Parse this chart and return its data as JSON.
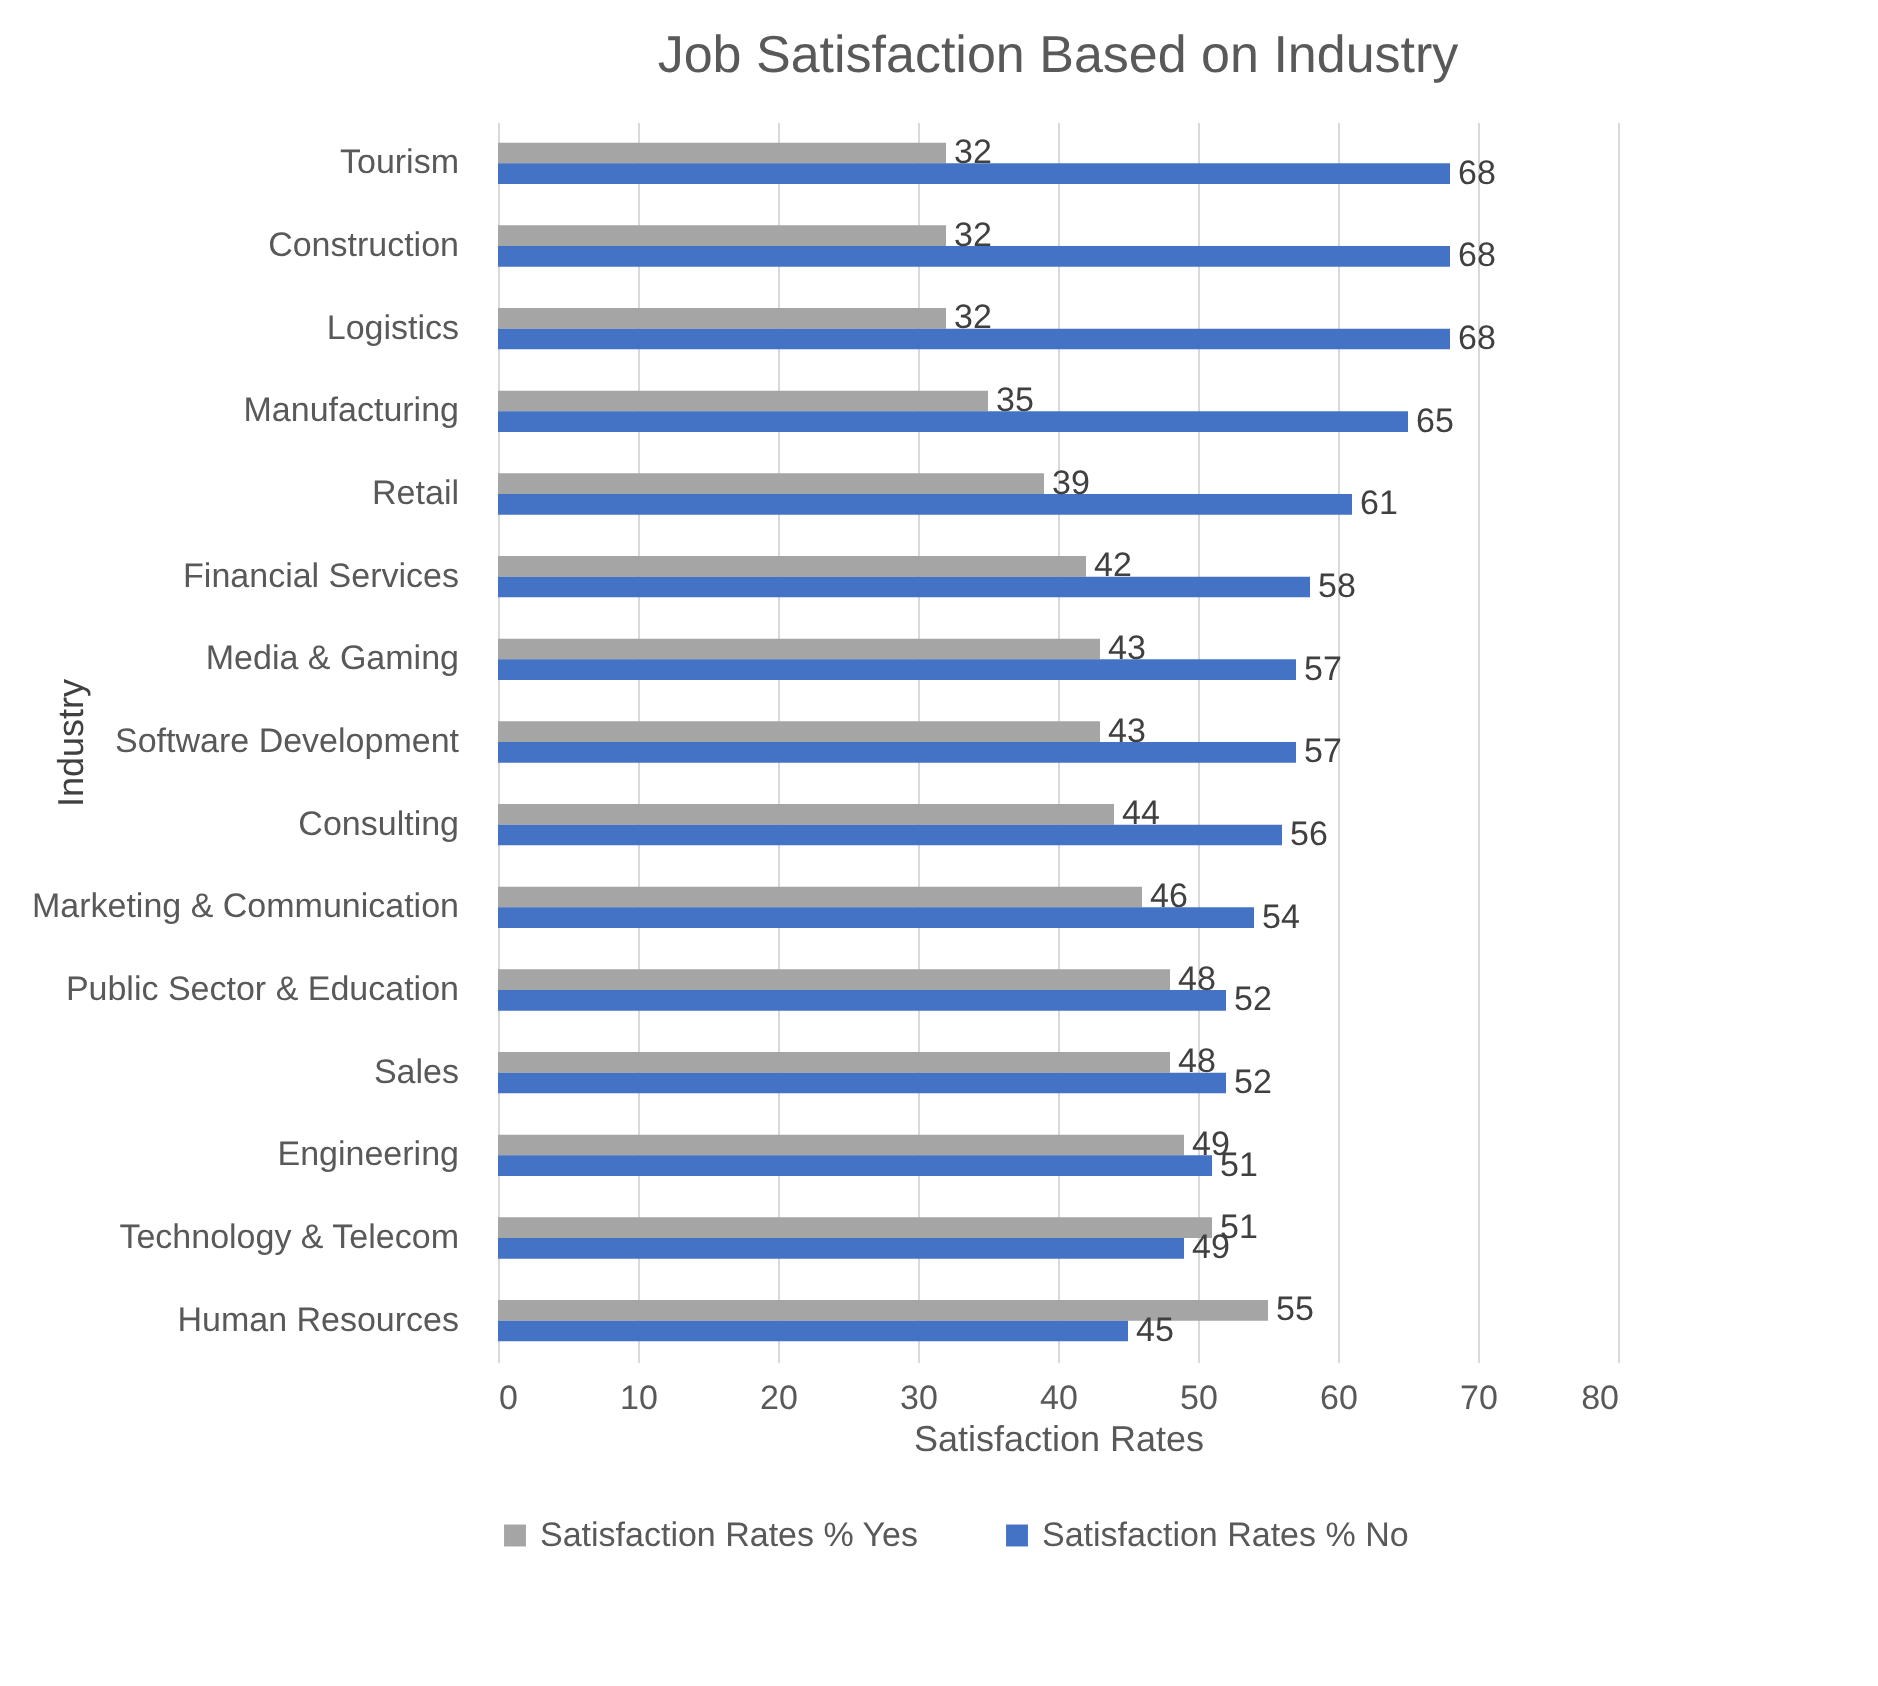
{
  "chart_data": {
    "type": "bar",
    "orientation": "horizontal",
    "title": "Job Satisfaction Based on Industry",
    "xlabel": "Satisfaction Rates",
    "ylabel": "Industry",
    "categories": [
      "Tourism",
      "Construction",
      "Logistics",
      "Manufacturing",
      "Retail",
      "Financial Services",
      "Media & Gaming",
      "Software Development",
      "Consulting",
      "Marketing & Communication",
      "Public Sector & Education",
      "Sales",
      "Engineering",
      "Technology & Telecom",
      "Human Resources"
    ],
    "series": [
      {
        "name": "Satisfaction Rates % Yes",
        "color": "#a5a5a5",
        "values": [
          32,
          32,
          32,
          35,
          39,
          42,
          43,
          43,
          44,
          46,
          48,
          48,
          49,
          51,
          55
        ]
      },
      {
        "name": "Satisfaction Rates % No",
        "color": "#4472c4",
        "values": [
          68,
          68,
          68,
          65,
          61,
          58,
          57,
          57,
          56,
          54,
          52,
          52,
          51,
          49,
          45
        ]
      }
    ],
    "xlim": [
      0,
      80
    ],
    "xticks": [
      0,
      10,
      20,
      30,
      40,
      50,
      60,
      70,
      80
    ],
    "grid": "x",
    "legend": "bottom",
    "data_labels": true
  }
}
